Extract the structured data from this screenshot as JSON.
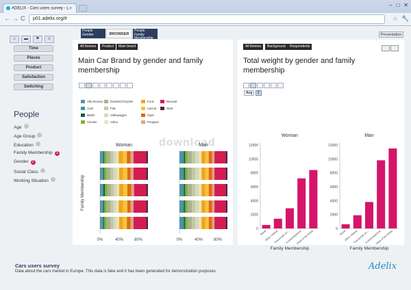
{
  "browser": {
    "tab_title": "ADELIX - Cars users survey - L",
    "close": "×",
    "url": "p01.adelix.org/#",
    "back": "←",
    "forward": "→",
    "reload": "C",
    "star": "☆",
    "wrench": "🔧",
    "min": "–",
    "max": "□",
    "winclose": "✕"
  },
  "sidebar": {
    "tool_icons": [
      "home-icon",
      "car-icon",
      "flag-icon",
      "people-icon"
    ],
    "nav_buttons": [
      "Time",
      "Places",
      "Product",
      "Satisfaction",
      "Switching"
    ],
    "people_title": "People",
    "people_items": [
      {
        "label": "Age",
        "badge": "●",
        "active": false
      },
      {
        "label": "Age Group",
        "badge": "●",
        "active": false
      },
      {
        "label": "Education",
        "badge": "●",
        "active": false
      },
      {
        "label": "Family Membership",
        "badge": "1",
        "active": true
      },
      {
        "label": "Gender",
        "badge": "2",
        "active": true
      },
      {
        "label": "Social Class",
        "badge": "●",
        "active": false
      },
      {
        "label": "Working Situation",
        "badge": "●",
        "active": false
      }
    ]
  },
  "top_tabs": {
    "tab1": {
      "line1": "People",
      "line2": "Gender"
    },
    "tab2": {
      "label": "BROWSER"
    },
    "tab3": {
      "line1": "People",
      "line2": "Family",
      "line3": "Membership"
    },
    "presentation": "Presentation"
  },
  "panel1": {
    "crumbs": [
      "All themes",
      "Product",
      "Main brand"
    ],
    "title": "Main Car Brand by gender and family membership"
  },
  "panel2": {
    "crumbs": [
      "All themes",
      "Background",
      "Respondents"
    ],
    "title": "Total weight by gender and family membership",
    "avg_label": "Avg",
    "sum_label": "Σ"
  },
  "footer": {
    "title": "Cars users survey",
    "description": "Data about the cars market in Europe. This data is fake and it has been generated for demonstration purposes.",
    "logo": "Adelix"
  },
  "watermark": "download",
  "chart_data": [
    {
      "type": "bar",
      "orientation": "horizontal-stacked-percent",
      "title": "Main Car Brand by gender and family membership",
      "panels": [
        "Woman",
        "Man"
      ],
      "ylabel": "Family Membership",
      "xticks": [
        "0%",
        "40%",
        "80%"
      ],
      "xlim": [
        0,
        100
      ],
      "series": [
        {
          "name": "Alfa Romeo",
          "color": "#5a8fae"
        },
        {
          "name": "Audi",
          "color": "#3a9b9e"
        },
        {
          "name": "BMW",
          "color": "#1f5a3a"
        },
        {
          "name": "Citroën",
          "color": "#7fb23a"
        },
        {
          "name": "Daimler/Chrysler",
          "color": "#a9b28c"
        },
        {
          "name": "Fiat",
          "color": "#c2c99e"
        },
        {
          "name": "Volkswagen",
          "color": "#d6d6c2"
        },
        {
          "name": "Volvo",
          "color": "#e8e4b8"
        },
        {
          "name": "Ford",
          "color": "#f3a416"
        },
        {
          "name": "Lancia",
          "color": "#f5c342"
        },
        {
          "name": "Opel",
          "color": "#e06a10"
        },
        {
          "name": "Peugeot",
          "color": "#d9a58a"
        },
        {
          "name": "Renault",
          "color": "#d41c52"
        },
        {
          "name": "Seat",
          "color": "#5a1f4a"
        }
      ],
      "rows": [
        {
          "panel": "Woman",
          "segments": [
            4,
            3,
            2,
            5,
            8,
            6,
            6,
            5,
            9,
            8,
            8,
            6,
            26,
            4
          ]
        },
        {
          "panel": "Woman",
          "segments": [
            4,
            3,
            2,
            5,
            8,
            6,
            7,
            5,
            8,
            9,
            7,
            6,
            26,
            4
          ]
        },
        {
          "panel": "Woman",
          "segments": [
            4,
            3,
            3,
            5,
            8,
            6,
            6,
            5,
            9,
            8,
            8,
            6,
            25,
            4
          ]
        },
        {
          "panel": "Woman",
          "segments": [
            4,
            3,
            2,
            5,
            8,
            6,
            6,
            5,
            9,
            9,
            7,
            6,
            26,
            4
          ]
        },
        {
          "panel": "Woman",
          "segments": [
            4,
            3,
            2,
            5,
            8,
            6,
            6,
            6,
            8,
            8,
            8,
            6,
            26,
            4
          ]
        },
        {
          "panel": "Man",
          "segments": [
            5,
            4,
            3,
            5,
            9,
            7,
            7,
            6,
            8,
            7,
            7,
            5,
            23,
            4
          ]
        },
        {
          "panel": "Man",
          "segments": [
            5,
            4,
            3,
            5,
            9,
            7,
            7,
            6,
            8,
            7,
            7,
            5,
            23,
            4
          ]
        },
        {
          "panel": "Man",
          "segments": [
            5,
            4,
            3,
            5,
            9,
            7,
            7,
            6,
            8,
            7,
            7,
            5,
            23,
            4
          ]
        },
        {
          "panel": "Man",
          "segments": [
            5,
            4,
            3,
            5,
            9,
            7,
            7,
            6,
            8,
            7,
            7,
            5,
            23,
            4
          ]
        },
        {
          "panel": "Man",
          "segments": [
            5,
            4,
            3,
            5,
            9,
            7,
            7,
            6,
            8,
            7,
            7,
            5,
            23,
            4
          ]
        }
      ]
    },
    {
      "type": "bar",
      "title": "Total weight by gender and family membership",
      "xlabel": "Family Membership",
      "ylim": [
        0,
        12000
      ],
      "yticks": [
        0,
        2000,
        4000,
        6000,
        8000,
        10000,
        12000
      ],
      "categories": [
        "Alone",
        "Other relative",
        "Grandchild of t...",
        "Husband/partner",
        "Head of the family"
      ],
      "color": "#d4156a",
      "series": [
        {
          "name": "Woman",
          "values": [
            500,
            1400,
            2900,
            7200,
            8400
          ]
        },
        {
          "name": "Man",
          "values": [
            600,
            1900,
            3800,
            9800,
            11500
          ]
        }
      ]
    }
  ]
}
